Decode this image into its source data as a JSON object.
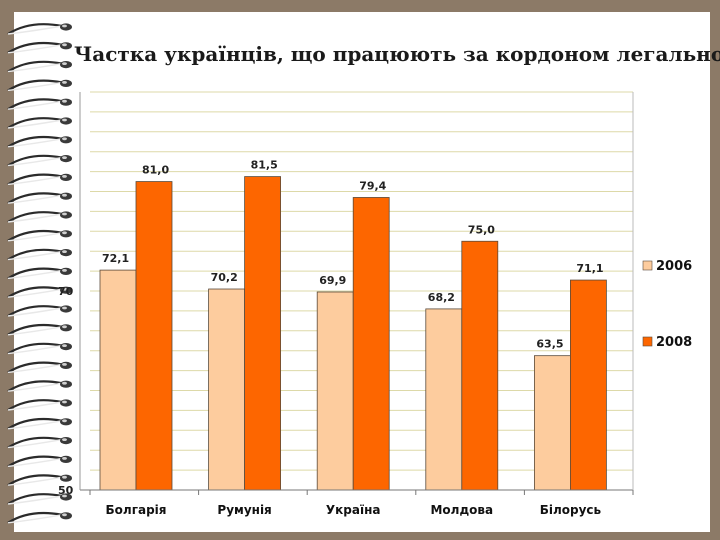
{
  "slide": {
    "background_color": "#8c7a67",
    "paper_color": "#ffffff"
  },
  "chart_data": {
    "type": "bar",
    "title": "Частка українців, що працюють за кордоном легально",
    "xlabel": "",
    "ylabel": "",
    "categories": [
      "Болгарія",
      "Румунія",
      "Україна",
      "Молдова",
      "Білорусь"
    ],
    "series": [
      {
        "name": "2006",
        "color": "#fdcc9e",
        "values": [
          72.1,
          70.2,
          69.9,
          68.2,
          63.5
        ],
        "labels": [
          "72,1",
          "70,2",
          "69,9",
          "68,2",
          "63,5"
        ]
      },
      {
        "name": "2008",
        "color": "#fd6600",
        "values": [
          81.0,
          81.5,
          79.4,
          75.0,
          71.1
        ],
        "labels": [
          "81,0",
          "81,5",
          "79,4",
          "75,0",
          "71,1"
        ]
      }
    ],
    "ylim": [
      50,
      90
    ],
    "yticks_shown": [
      {
        "value": 70,
        "label": "70"
      },
      {
        "value": 50,
        "label": "50"
      }
    ],
    "grid": true,
    "legend_position": "right"
  }
}
